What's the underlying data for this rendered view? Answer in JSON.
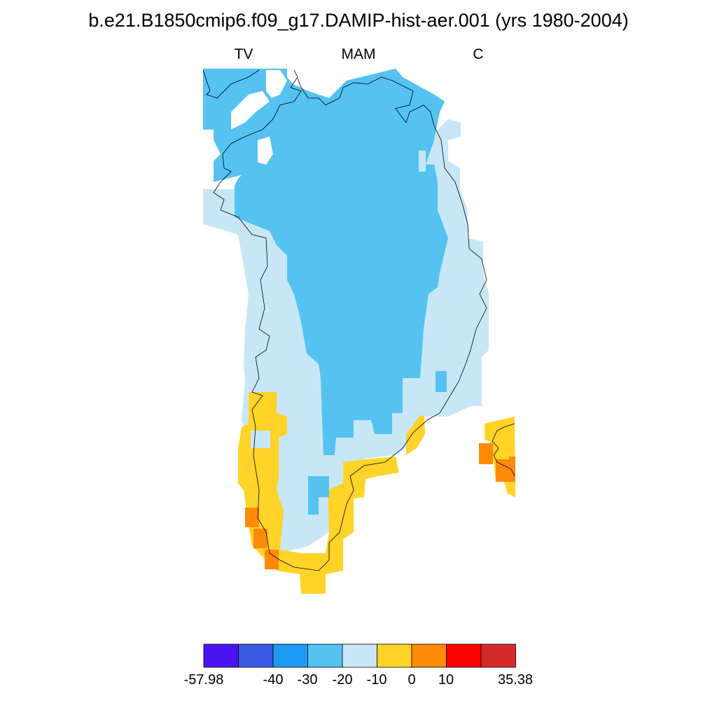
{
  "title": "b.e21.B1850cmip6.f09_g17.DAMIP-hist-aer.001 (yrs 1980-2004)",
  "subtitle": {
    "left": "TV",
    "center": "MAM",
    "right": "C"
  },
  "colorbar": {
    "colors": [
      "#4b14f2",
      "#3b5ae3",
      "#1f9af5",
      "#55c2f2",
      "#c8e7f6",
      "#ffd328",
      "#ff8a08",
      "#ff0000",
      "#d62a2a"
    ],
    "labels": [
      "-57.98",
      "-40",
      "-30",
      "-20",
      "-10",
      "0",
      "10",
      "35.38"
    ]
  },
  "map": {
    "region": "Greenland",
    "colors": {
      "lt_minus30_minus20": "#55c2f2",
      "lt_minus20_minus10": "#c8e7f6",
      "lt_minus10_0": "#ffd328",
      "lt_0_10": "#ff8a08"
    }
  }
}
